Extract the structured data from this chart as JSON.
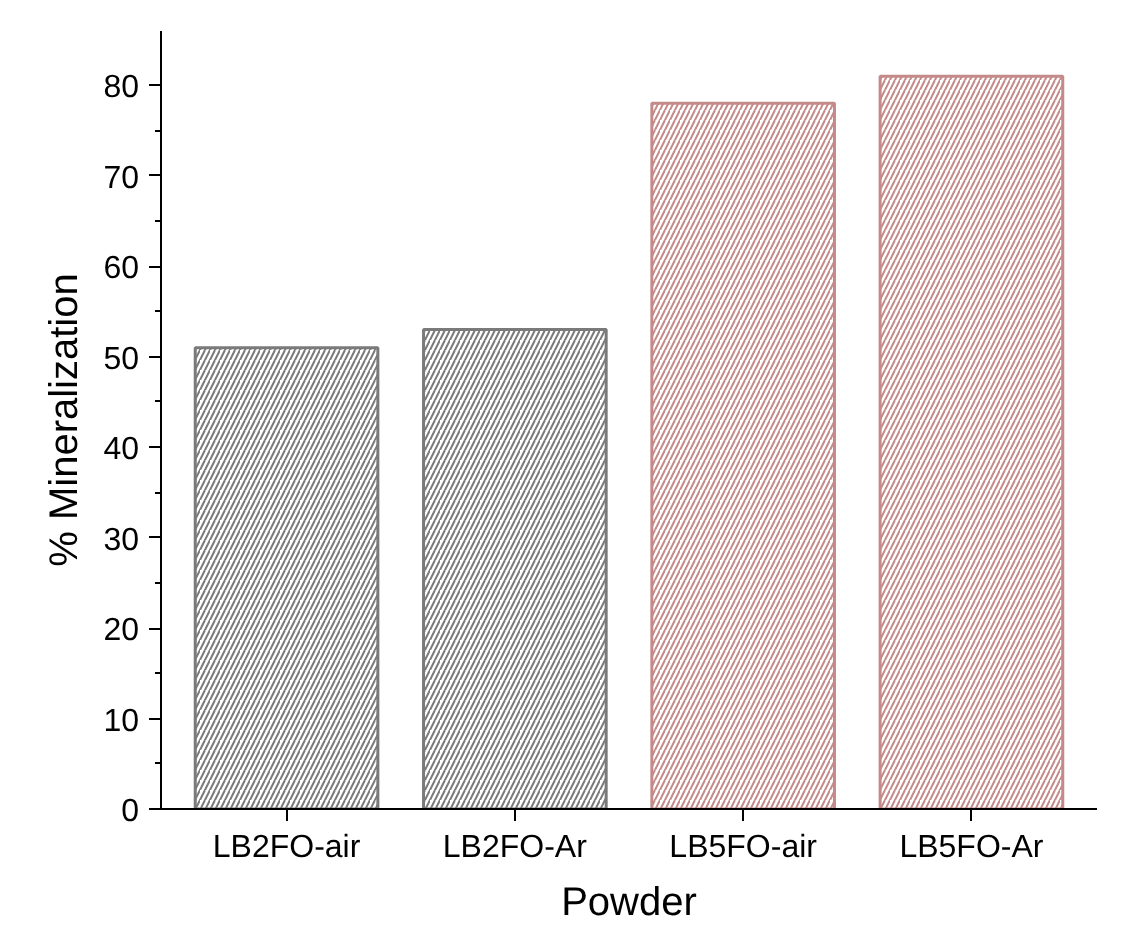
{
  "chart_data": {
    "type": "bar",
    "xlabel": "Powder",
    "ylabel": "% Mineralization",
    "categories": [
      "LB2FO-air",
      "LB2FO-Ar",
      "LB5FO-air",
      "LB5FO-Ar"
    ],
    "values": [
      51,
      53,
      78,
      81
    ],
    "colors": [
      "#7a7a7a",
      "#7a7a7a",
      "#c48a8a",
      "#c48a8a"
    ],
    "ylim": [
      0,
      86
    ],
    "yticks": [
      0,
      10,
      20,
      30,
      40,
      50,
      60,
      70,
      80
    ],
    "grid": false
  }
}
